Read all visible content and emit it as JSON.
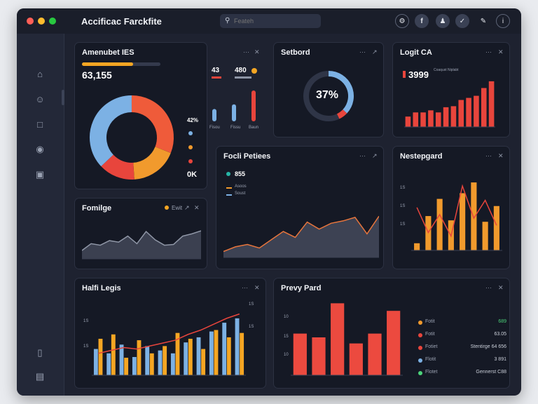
{
  "window": {
    "title": "Accificac Farckfite",
    "search_placeholder": "Feateh",
    "traffic": [
      "#ff5f57",
      "#febc2e",
      "#28c840"
    ],
    "toolbar_icons": [
      "settings-icon",
      "facebook-icon",
      "user-icon",
      "bookmark-icon",
      "edit-icon",
      "info-icon"
    ]
  },
  "sidebar": {
    "items": [
      {
        "icon": "home-icon"
      },
      {
        "icon": "profile-icon"
      },
      {
        "icon": "lock-icon"
      },
      {
        "icon": "message-icon"
      },
      {
        "icon": "folder-icon"
      },
      {
        "icon": "help-icon"
      },
      {
        "icon": "settings-icon"
      }
    ]
  },
  "panels": {
    "p1": {
      "title": "Amenubet IES",
      "value": "63,155",
      "progress": 0.65,
      "stat_a": "43",
      "stat_b": "480",
      "legend": [
        {
          "value": "42%",
          "color": "#7cb1e4"
        },
        {
          "value": "",
          "color": "#f19a2d"
        },
        {
          "value": "",
          "color": "#e8453c"
        }
      ],
      "total": "0K",
      "bar_labels": [
        "Fisou",
        "Fissu",
        "Baun"
      ]
    },
    "p2": {
      "title": "Setbord",
      "percent": "37%"
    },
    "p3": {
      "title": "Logit CA",
      "value": "3999",
      "value_sub": "Coaqust Niplabt"
    },
    "p4": {
      "title": "Fomilge",
      "legend_label": "Ewit"
    },
    "p5": {
      "title": "Focli Petiees",
      "value": "855",
      "legend": [
        "Asoos",
        "Soust"
      ]
    },
    "p6": {
      "title": "Nestepgard",
      "y_ticks": [
        "1S",
        "1S",
        "1S"
      ]
    },
    "p7": {
      "title": "Halfi Legis",
      "y_ticks": [
        "1S",
        "1S"
      ],
      "right_ticks": [
        "1S",
        "1S"
      ]
    },
    "p8": {
      "title": "Prevy Pard",
      "y_ticks": [
        "10",
        "15",
        "10"
      ],
      "legend": [
        {
          "label": "Fotit",
          "value": "689",
          "color": "#f19a2d",
          "value_color": "#4cd37a"
        },
        {
          "label": "Fotit",
          "value": "63.05",
          "color": "#e8453c",
          "value_color": "#c9ced8"
        },
        {
          "label": "Fotiet",
          "value": "Stentirge 64 656",
          "color": "#e8453c",
          "value_color": "#c9ced8"
        },
        {
          "label": "Flotit",
          "value": "3 891",
          "color": "#7cb1e4",
          "value_color": "#c9ced8"
        },
        {
          "label": "Flotet",
          "value": "Gennerst C88",
          "color": "#4cd37a",
          "value_color": "#c9ced8"
        }
      ]
    }
  },
  "chart_data": [
    {
      "type": "pie",
      "values": [
        31,
        18,
        14,
        37
      ],
      "colors": [
        "#ef5b3a",
        "#f19a2d",
        "#e8453c",
        "#7cb1e4"
      ]
    },
    {
      "type": "bar",
      "values": [
        0.4,
        0.55,
        1.0
      ],
      "colors": [
        "#7cb1e4",
        "#7cb1e4",
        "#e8453c"
      ]
    },
    {
      "type": "pie",
      "values": [
        37,
        6,
        57
      ],
      "colors": [
        "#7cb1e4",
        "#e8453c",
        "#2f3547"
      ]
    },
    {
      "type": "bar",
      "values": [
        20,
        28,
        28,
        32,
        28,
        38,
        40,
        52,
        56,
        60,
        75,
        88
      ],
      "ylim": [
        0,
        100
      ]
    },
    {
      "type": "area",
      "values": [
        22,
        40,
        36,
        48,
        44,
        60,
        40,
        72,
        50,
        36,
        38,
        60,
        66,
        74
      ],
      "ylim": [
        0,
        100
      ]
    },
    {
      "type": "area",
      "values": [
        10,
        18,
        22,
        16,
        30,
        44,
        34,
        60,
        48,
        58,
        62,
        68,
        40,
        70
      ],
      "ylim": [
        0,
        100
      ]
    },
    {
      "type": "bar",
      "series": [
        {
          "values": [
            10,
            48,
            72,
            42,
            80,
            95,
            40,
            62
          ]
        },
        {
          "values": [
            60,
            25,
            50,
            20,
            90,
            45,
            70,
            35
          ]
        }
      ],
      "ylim": [
        0,
        100
      ]
    },
    {
      "type": "bar",
      "series": [
        {
          "values": [
            36,
            30,
            42,
            25,
            40,
            34,
            30,
            45,
            52,
            60,
            72,
            78
          ]
        },
        {
          "values": [
            50,
            56,
            24,
            48,
            30,
            40,
            58,
            50,
            36,
            62,
            52,
            58
          ]
        }
      ],
      "line": [
        30,
        34,
        38,
        36,
        40,
        44,
        48,
        56,
        62,
        70,
        78,
        84
      ],
      "ylim": [
        0,
        100
      ]
    },
    {
      "type": "bar",
      "values": [
        55,
        50,
        95,
        42,
        55,
        85
      ],
      "ylim": [
        0,
        100
      ]
    }
  ]
}
